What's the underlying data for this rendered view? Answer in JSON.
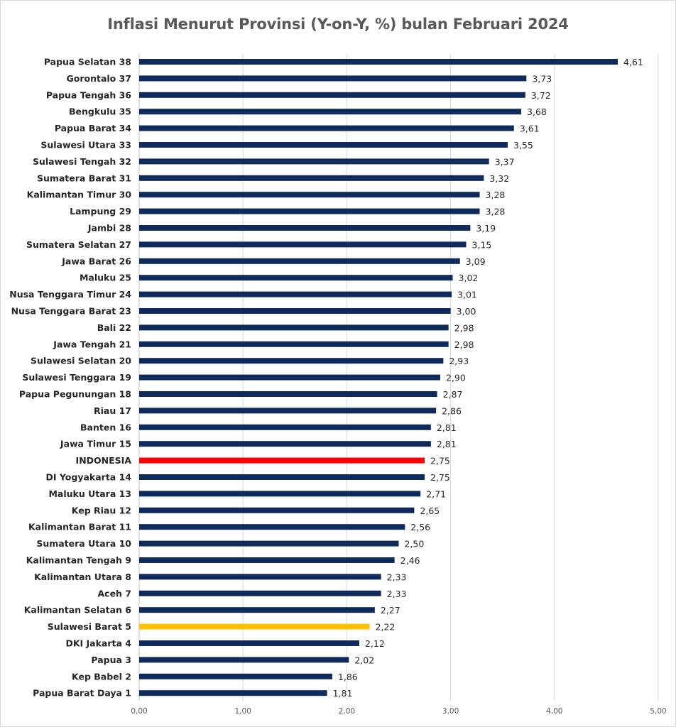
{
  "chart_data": {
    "type": "bar",
    "orientation": "horizontal",
    "title": "Inflasi Menurut Provinsi (Y-on-Y, %) bulan Februari 2024",
    "xlim": [
      0,
      5
    ],
    "x_ticks": [
      "0,00",
      "1,00",
      "2,00",
      "3,00",
      "4,00",
      "5,00"
    ],
    "grid": "vertical",
    "legend": "none",
    "categories": [
      "Papua Selatan 38",
      "Gorontalo 37",
      "Papua Tengah 36",
      "Bengkulu 35",
      "Papua Barat 34",
      "Sulawesi Utara 33",
      "Sulawesi Tengah 32",
      "Sumatera Barat 31",
      "Kalimantan Timur 30",
      "Lampung 29",
      "Jambi 28",
      "Sumatera Selatan 27",
      "Jawa Barat 26",
      "Maluku 25",
      "Nusa Tenggara Timur 24",
      "Nusa Tenggara Barat 23",
      "Bali 22",
      "Jawa Tengah 21",
      "Sulawesi Selatan 20",
      "Sulawesi Tenggara 19",
      "Papua Pegunungan 18",
      "Riau 17",
      "Banten 16",
      "Jawa Timur 15",
      "INDONESIA",
      "DI Yogyakarta 14",
      "Maluku Utara 13",
      "Kep Riau 12",
      "Kalimantan Barat 11",
      "Sumatera Utara 10",
      "Kalimantan Tengah 9",
      "Kalimantan Utara 8",
      "Aceh 7",
      "Kalimantan Selatan 6",
      "Sulawesi Barat 5",
      "DKI Jakarta 4",
      "Papua 3",
      "Kep Babel 2",
      "Papua Barat Daya 1"
    ],
    "values": [
      4.61,
      3.73,
      3.72,
      3.68,
      3.61,
      3.55,
      3.37,
      3.32,
      3.28,
      3.28,
      3.19,
      3.15,
      3.09,
      3.02,
      3.01,
      3.0,
      2.98,
      2.98,
      2.93,
      2.9,
      2.87,
      2.86,
      2.81,
      2.81,
      2.75,
      2.75,
      2.71,
      2.65,
      2.56,
      2.5,
      2.46,
      2.33,
      2.33,
      2.27,
      2.22,
      2.12,
      2.02,
      1.86,
      1.81
    ],
    "value_labels": [
      "4,61",
      "3,73",
      "3,72",
      "3,68",
      "3,61",
      "3,55",
      "3,37",
      "3,32",
      "3,28",
      "3,28",
      "3,19",
      "3,15",
      "3,09",
      "3,02",
      "3,01",
      "3,00",
      "2,98",
      "2,98",
      "2,93",
      "2,90",
      "2,87",
      "2,86",
      "2,81",
      "2,81",
      "2,75",
      "2,75",
      "2,71",
      "2,65",
      "2,56",
      "2,50",
      "2,46",
      "2,33",
      "2,33",
      "2,27",
      "2,22",
      "2,12",
      "2,02",
      "1,86",
      "1,81"
    ],
    "colors": {
      "default": "#0f2a5c",
      "highlight_national": "#ff0000",
      "highlight_province": "#ffc000",
      "grid": "#d9d9d9",
      "axis": "#bfbfbf"
    },
    "highlights": {
      "INDONESIA": "highlight_national",
      "Sulawesi Barat 5": "highlight_province"
    }
  }
}
